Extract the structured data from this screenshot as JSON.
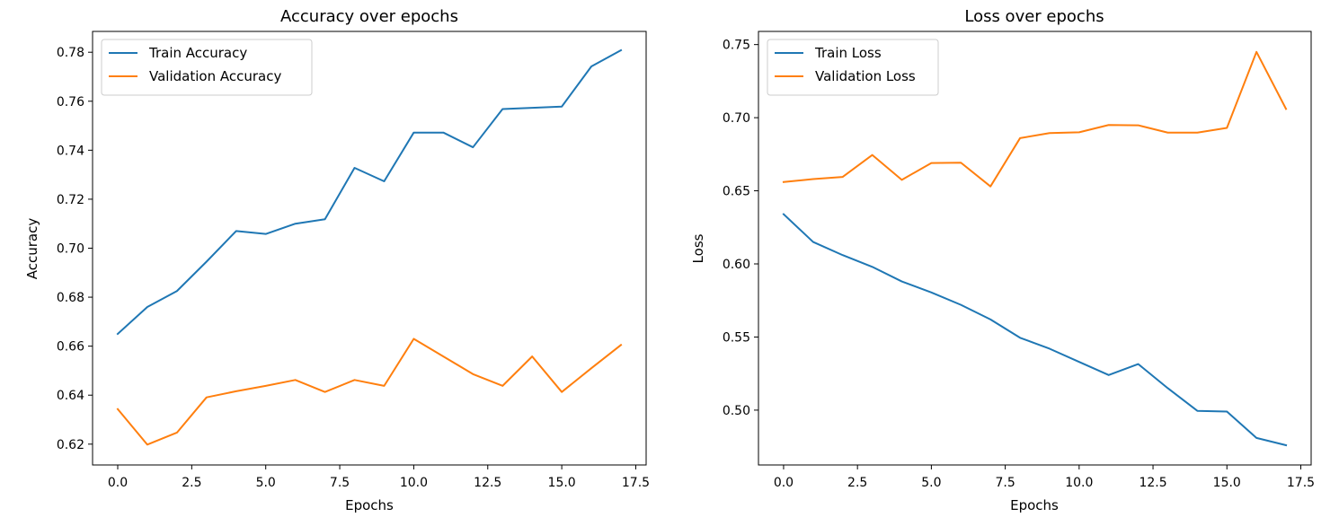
{
  "chart_data": [
    {
      "type": "line",
      "title": "Accuracy over epochs",
      "xlabel": "Epochs",
      "ylabel": "Accuracy",
      "xlim": [
        -0.85,
        17.85
      ],
      "ylim": [
        0.6115,
        0.7885
      ],
      "xticks": [
        0.0,
        2.5,
        5.0,
        7.5,
        10.0,
        12.5,
        15.0,
        17.5
      ],
      "xtick_labels": [
        "0.0",
        "2.5",
        "5.0",
        "7.5",
        "10.0",
        "12.5",
        "15.0",
        "17.5"
      ],
      "yticks": [
        0.62,
        0.64,
        0.66,
        0.68,
        0.7,
        0.72,
        0.74,
        0.76,
        0.78
      ],
      "ytick_labels": [
        "0.62",
        "0.64",
        "0.66",
        "0.68",
        "0.70",
        "0.72",
        "0.74",
        "0.76",
        "0.78"
      ],
      "legend_position": "upper left",
      "x": [
        0,
        1,
        2,
        3,
        4,
        5,
        6,
        7,
        8,
        9,
        10,
        11,
        12,
        13,
        14,
        15,
        16,
        17
      ],
      "series": [
        {
          "name": "Train Accuracy",
          "color": "#1f77b4",
          "values": [
            0.665,
            0.676,
            0.6825,
            0.6945,
            0.707,
            0.7058,
            0.71,
            0.7118,
            0.7328,
            0.7273,
            0.7472,
            0.7472,
            0.7412,
            0.7568,
            0.7573,
            0.7578,
            0.7742,
            0.7808
          ]
        },
        {
          "name": "Validation Accuracy",
          "color": "#ff7f0e",
          "values": [
            0.6343,
            0.6198,
            0.6247,
            0.6391,
            0.6416,
            0.6438,
            0.6462,
            0.6413,
            0.6462,
            0.6438,
            0.663,
            0.6558,
            0.6486,
            0.6438,
            0.6558,
            0.6413,
            0.651,
            0.6605
          ]
        }
      ]
    },
    {
      "type": "line",
      "title": "Loss over epochs",
      "xlabel": "Epochs",
      "ylabel": "Loss",
      "xlim": [
        -0.85,
        17.85
      ],
      "ylim": [
        0.4625,
        0.759
      ],
      "xticks": [
        0.0,
        2.5,
        5.0,
        7.5,
        10.0,
        12.5,
        15.0,
        17.5
      ],
      "xtick_labels": [
        "0.0",
        "2.5",
        "5.0",
        "7.5",
        "10.0",
        "12.5",
        "15.0",
        "17.5"
      ],
      "yticks": [
        0.5,
        0.55,
        0.6,
        0.65,
        0.7,
        0.75
      ],
      "ytick_labels": [
        "0.50",
        "0.55",
        "0.60",
        "0.65",
        "0.70",
        "0.75"
      ],
      "legend_position": "upper left",
      "x": [
        0,
        1,
        2,
        3,
        4,
        5,
        6,
        7,
        8,
        9,
        10,
        11,
        12,
        13,
        14,
        15,
        16,
        17
      ],
      "series": [
        {
          "name": "Train Loss",
          "color": "#1f77b4",
          "values": [
            0.634,
            0.615,
            0.606,
            0.598,
            0.588,
            0.5805,
            0.572,
            0.562,
            0.5495,
            0.542,
            0.533,
            0.524,
            0.5315,
            0.515,
            0.4995,
            0.499,
            0.481,
            0.476
          ]
        },
        {
          "name": "Validation Loss",
          "color": "#ff7f0e",
          "values": [
            0.656,
            0.658,
            0.6595,
            0.6745,
            0.6575,
            0.669,
            0.6692,
            0.653,
            0.686,
            0.6895,
            0.69,
            0.695,
            0.6948,
            0.6898,
            0.6898,
            0.693,
            0.745,
            0.706
          ]
        }
      ]
    }
  ]
}
